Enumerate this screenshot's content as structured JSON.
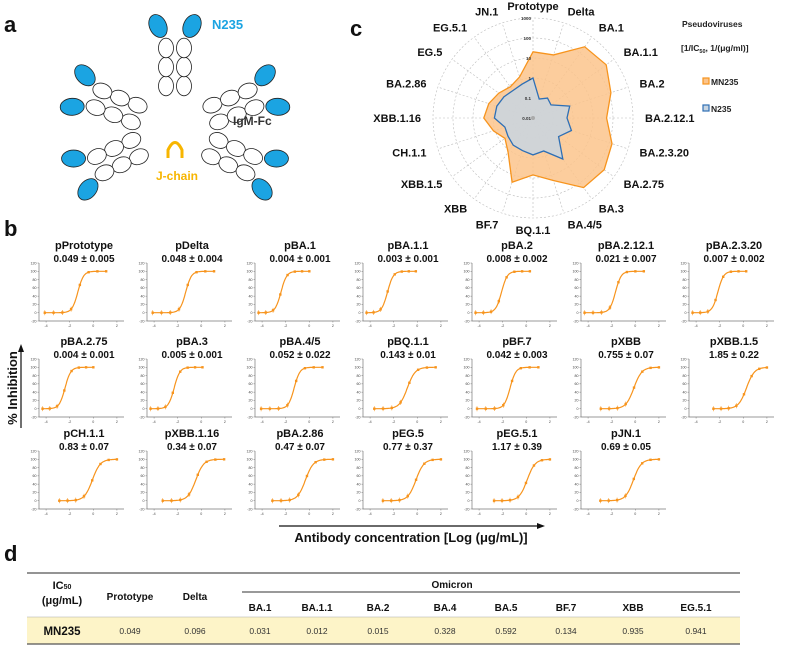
{
  "panels": {
    "a": "a",
    "b": "b",
    "c": "c",
    "d": "d"
  },
  "diagram": {
    "n235_label": "N235",
    "igm_label": "IgM-Fc",
    "jchain_label": "J-chain",
    "colors": {
      "n235": "#1ba4e2",
      "jchain": "#f7b500",
      "domain_outline": "#222222"
    }
  },
  "chart_data": [
    {
      "type": "radar",
      "legend_title": "Pseudoviruses",
      "legend_subtitle_pre": "[1/IC",
      "legend_subtitle_sub": "50",
      "legend_subtitle_post": ", 1/(μg/ml)]",
      "legend_placement": "right",
      "scale": "log",
      "rings": [
        "0.01",
        "0.1",
        "1",
        "10",
        "100",
        "1000"
      ],
      "ring_values": [
        0.01,
        0.1,
        1,
        10,
        100,
        1000
      ],
      "axes": [
        "Prototype",
        "Delta",
        "BA.1",
        "BA.1.1",
        "BA.2",
        "BA.2.12.1",
        "BA.2.3.20",
        "BA.2.75",
        "BA.3",
        "BA.4/5",
        "BQ.1.1",
        "BF.7",
        "XBB",
        "XBB.1.5",
        "CH.1.1",
        "XBB.1.16",
        "BA.2.86",
        "EG.5",
        "EG.5.1",
        "JN.1"
      ],
      "series": [
        {
          "name": "MN235",
          "color": "#f7941d",
          "fill": "#fbc48c",
          "values": [
            20.4,
            20.8,
            250,
            333,
            125,
            48,
            143,
            250,
            200,
            19.2,
            7,
            23.8,
            1.32,
            0.54,
            1.2,
            2.9,
            2.1,
            1.3,
            0.85,
            1.45
          ]
        },
        {
          "name": "N235",
          "color": "#2e6fb5",
          "fill": "#c8d5e2",
          "values": [
            1.0,
            0.1,
            0.17,
            0.13,
            0.85,
            0.5,
            1.05,
            0.38,
            3.4,
            0.54,
            0.7,
            0.52,
            0.48,
            0.35,
            0.3,
            0.85,
            0.8,
            0.63,
            0.5,
            0.6
          ]
        }
      ]
    },
    {
      "type": "line",
      "ylabel": "% Inhibition",
      "xlabel": "Antibody concentration [Log (μg/mL)]",
      "xlim": [
        -4.6,
        2.6
      ],
      "ylim": [
        -20,
        120
      ],
      "xticks": [
        "-4",
        "-2",
        "0",
        "2"
      ],
      "yticks": [
        "-20",
        "0",
        "20",
        "40",
        "60",
        "80",
        "100",
        "120"
      ],
      "color": "#f7941d",
      "plots": [
        {
          "title": "pPrototype",
          "ic50_label": "0.049 ± 0.005",
          "ic50": 0.049
        },
        {
          "title": "pDelta",
          "ic50_label": "0.048 ± 0.004",
          "ic50": 0.048
        },
        {
          "title": "pBA.1",
          "ic50_label": "0.004 ± 0.001",
          "ic50": 0.004
        },
        {
          "title": "pBA.1.1",
          "ic50_label": "0.003 ± 0.001",
          "ic50": 0.003
        },
        {
          "title": "pBA.2",
          "ic50_label": "0.008 ± 0.002",
          "ic50": 0.008
        },
        {
          "title": "pBA.2.12.1",
          "ic50_label": "0.021 ± 0.007",
          "ic50": 0.021
        },
        {
          "title": "pBA.2.3.20",
          "ic50_label": "0.007 ± 0.002",
          "ic50": 0.007
        },
        {
          "title": "pBA.2.75",
          "ic50_label": "0.004 ± 0.001",
          "ic50": 0.004
        },
        {
          "title": "pBA.3",
          "ic50_label": "0.005 ± 0.001",
          "ic50": 0.005
        },
        {
          "title": "pBA.4/5",
          "ic50_label": "0.052 ± 0.022",
          "ic50": 0.052
        },
        {
          "title": "pBQ.1.1",
          "ic50_label": "0.143 ± 0.01",
          "ic50": 0.143
        },
        {
          "title": "pBF.7",
          "ic50_label": "0.042 ± 0.003",
          "ic50": 0.042
        },
        {
          "title": "pXBB",
          "ic50_label": "0.755 ± 0.07",
          "ic50": 0.755
        },
        {
          "title": "pXBB.1.5",
          "ic50_label": "1.85 ± 0.22",
          "ic50": 1.85
        },
        {
          "title": "pCH.1.1",
          "ic50_label": "0.83 ± 0.07",
          "ic50": 0.83
        },
        {
          "title": "pXBB.1.16",
          "ic50_label": "0.34 ± 0.07",
          "ic50": 0.34
        },
        {
          "title": "pBA.2.86",
          "ic50_label": "0.47 ± 0.07",
          "ic50": 0.47
        },
        {
          "title": "pEG.5",
          "ic50_label": "0.77 ± 0.37",
          "ic50": 0.77
        },
        {
          "title": "pEG.5.1",
          "ic50_label": "1.17 ± 0.39",
          "ic50": 1.17
        },
        {
          "title": "pJN.1",
          "ic50_label": "0.69 ± 0.05",
          "ic50": 0.69
        }
      ]
    },
    {
      "type": "table",
      "corner_label_pre": "IC",
      "corner_label_sub": "50",
      "corner_label_unit": "(μg/mL)",
      "group_header": "Omicron",
      "columns": [
        "Prototype",
        "Delta",
        "BA.1",
        "BA.1.1",
        "BA.2",
        "BA.4",
        "BA.5",
        "BF.7",
        "XBB",
        "EG.5.1"
      ],
      "rows": [
        {
          "label": "MN235",
          "values": [
            "0.049",
            "0.096",
            "0.031",
            "0.012",
            "0.015",
            "0.328",
            "0.592",
            "0.134",
            "0.935",
            "0.941"
          ]
        }
      ],
      "highlight_color": "#fdf4c8"
    }
  ]
}
